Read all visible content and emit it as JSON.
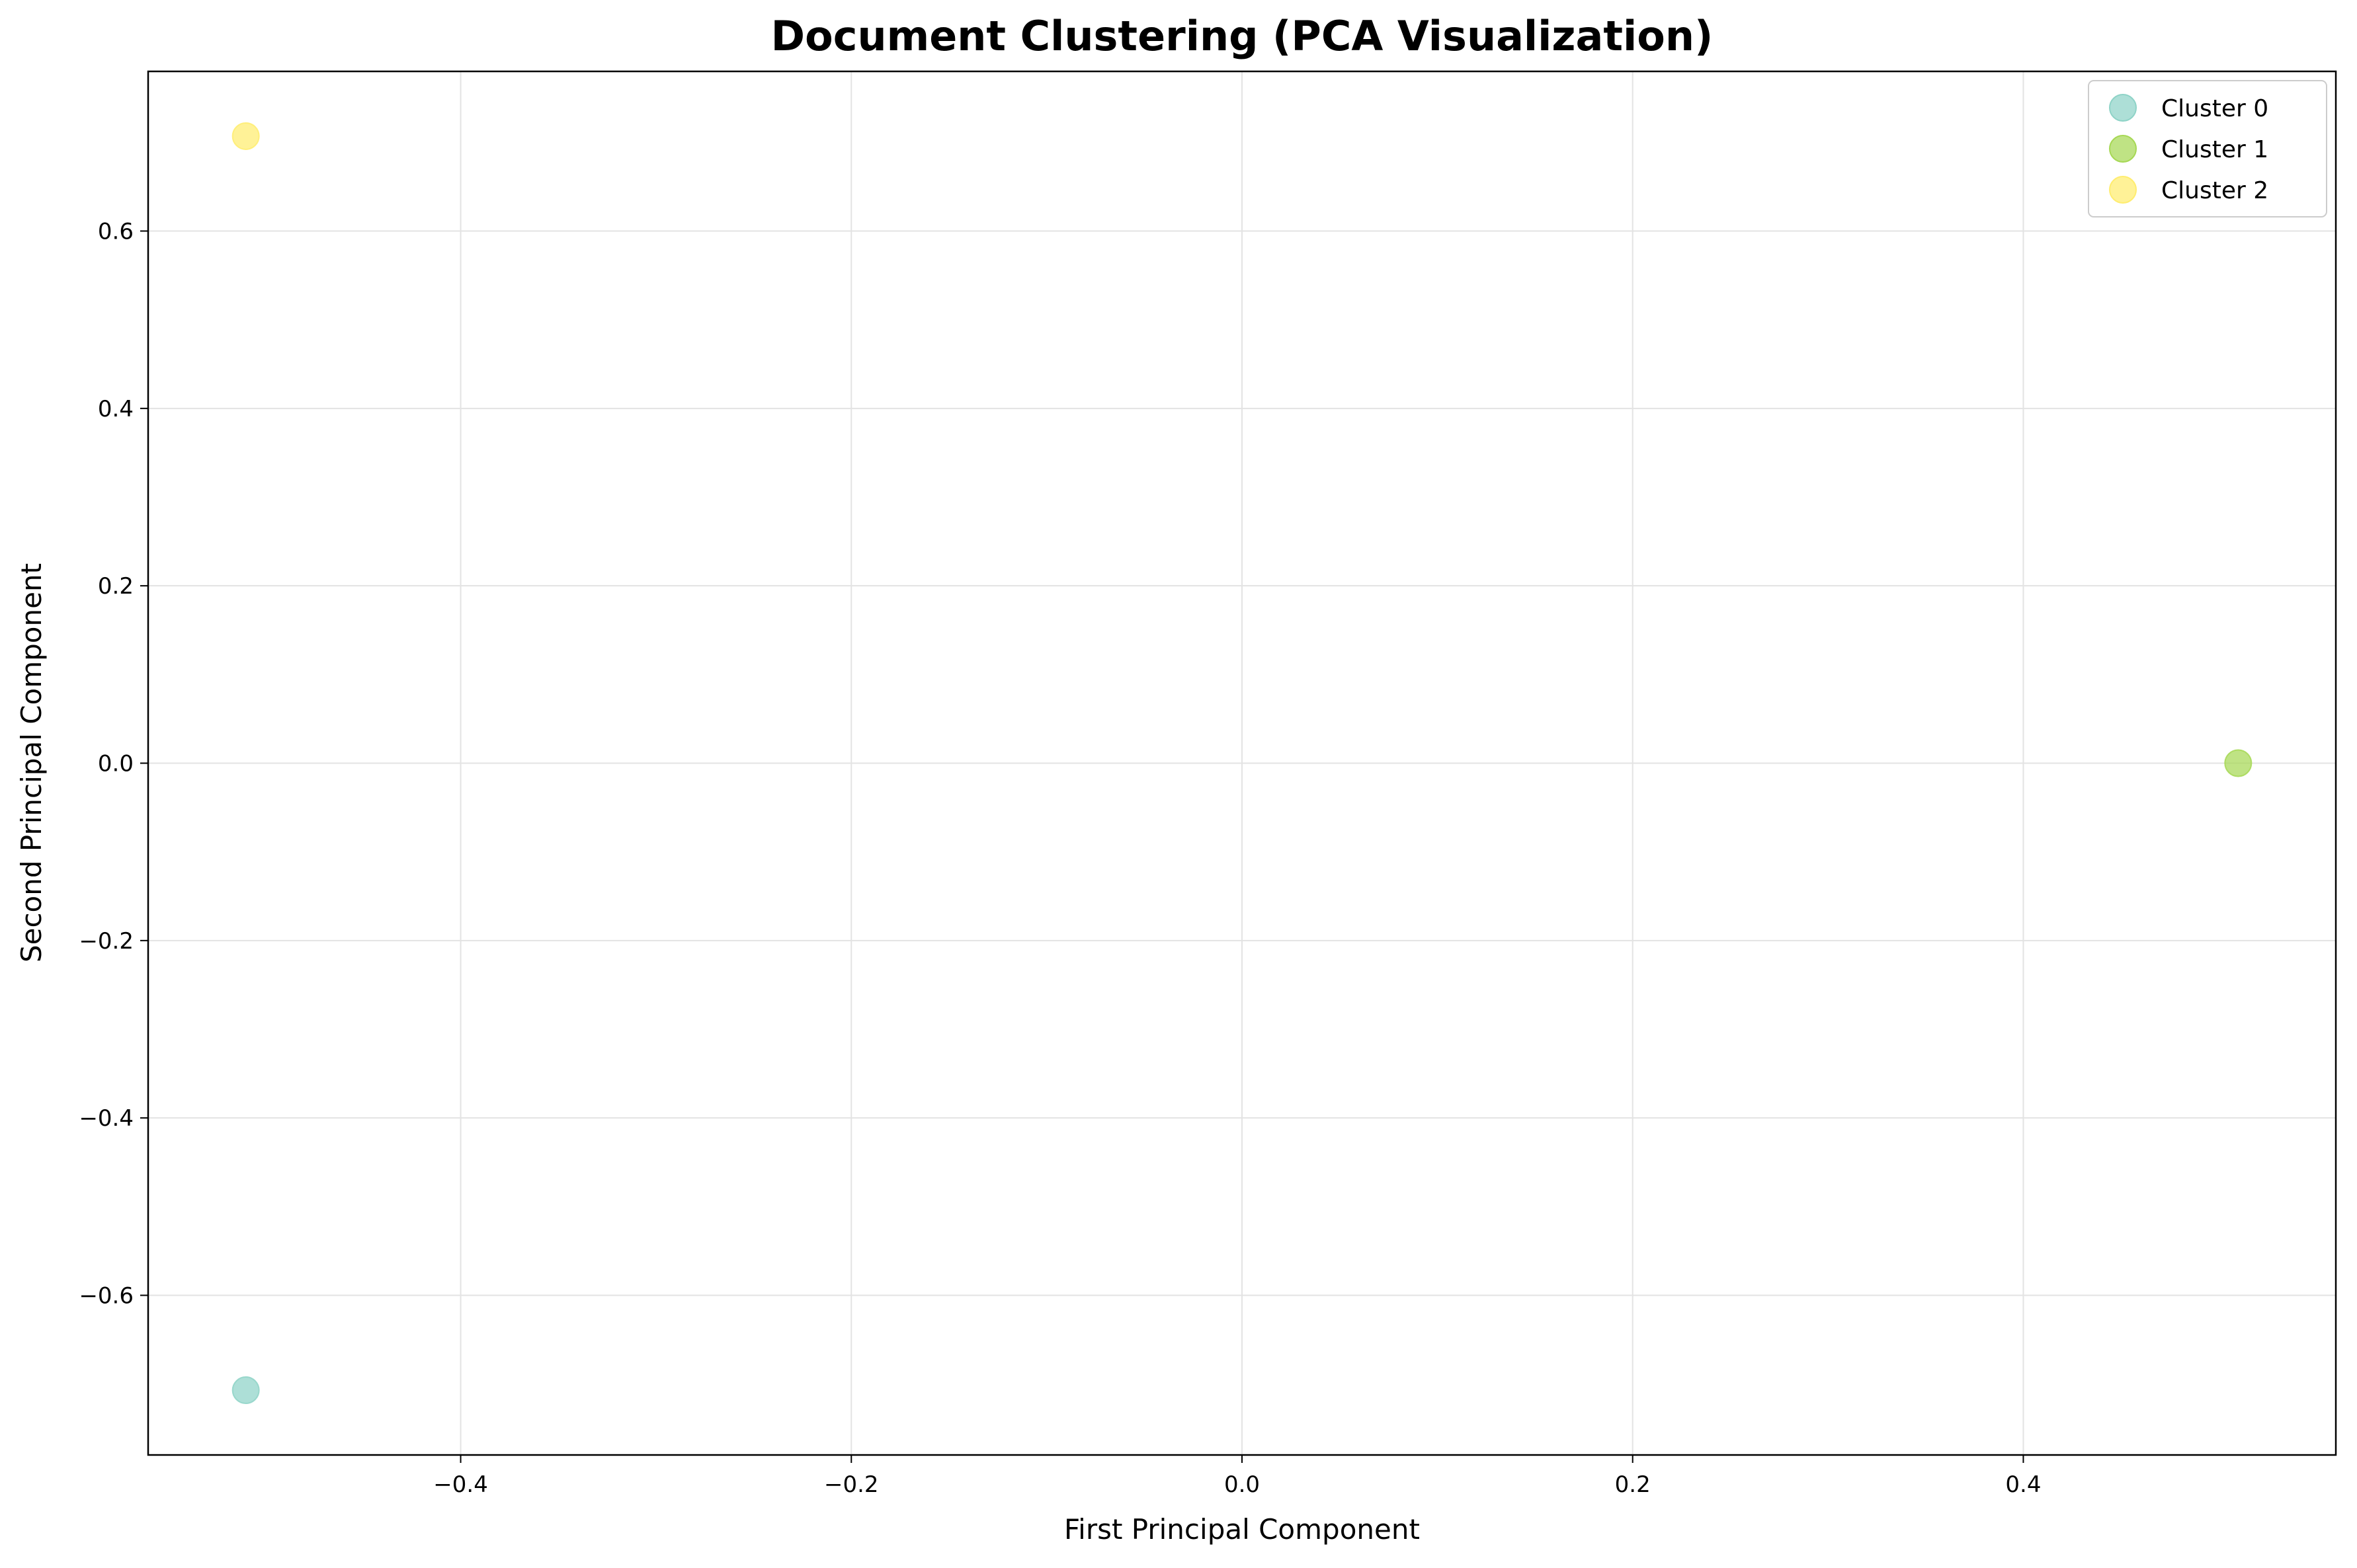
{
  "chart_data": {
    "type": "scatter",
    "title": "Document Clustering (PCA Visualization)",
    "xlabel": "First Principal Component",
    "ylabel": "Second Principal Component",
    "xlim": [
      -0.56,
      0.56
    ],
    "ylim": [
      -0.78,
      0.78
    ],
    "xticks": [
      -0.4,
      -0.2,
      0.0,
      0.2,
      0.4
    ],
    "xtick_labels": [
      "−0.4",
      "−0.2",
      "0.0",
      "0.2",
      "0.4"
    ],
    "yticks": [
      -0.6,
      -0.4,
      -0.2,
      0.0,
      0.2,
      0.4,
      0.6
    ],
    "ytick_labels": [
      "−0.6",
      "−0.4",
      "−0.2",
      "0.0",
      "0.2",
      "0.4",
      "0.6"
    ],
    "grid": true,
    "legend_position": "top-right",
    "series": [
      {
        "name": "Cluster 0",
        "color": "#8ed3c7",
        "points": [
          {
            "x": -0.51,
            "y": -0.707
          }
        ]
      },
      {
        "name": "Cluster 1",
        "color": "#a6d854",
        "points": [
          {
            "x": 0.51,
            "y": 0.0
          }
        ]
      },
      {
        "name": "Cluster 2",
        "color": "#ffed6f",
        "points": [
          {
            "x": -0.51,
            "y": 0.707
          }
        ]
      }
    ]
  }
}
